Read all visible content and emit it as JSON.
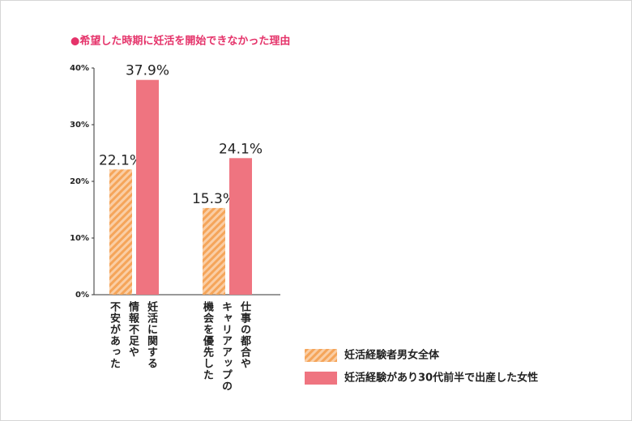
{
  "chart_data": {
    "type": "bar",
    "title": "●希望した時期に妊活を開始できなかった理由",
    "categories": [
      "妊活に関する\n情報不足や\n不安があった",
      "仕事の都合や\nキャリアアップの\n機会を優先した"
    ],
    "series": [
      {
        "name": "妊活経験者男女全体",
        "color": "#f5a55a",
        "pattern": "hatch",
        "values": [
          22.1,
          15.3
        ],
        "value_labels": [
          "22.1%",
          "15.3%"
        ]
      },
      {
        "name": "妊活経験があり30代前半で出産した女性",
        "color": "#ef7480",
        "values": [
          37.9,
          24.1
        ],
        "value_labels": [
          "37.9%",
          "24.1%"
        ]
      }
    ],
    "ylim": [
      0,
      40
    ],
    "yticks": [
      {
        "value": 0,
        "label": "0%"
      },
      {
        "value": 10,
        "label": "10%"
      },
      {
        "value": 20,
        "label": "20%"
      },
      {
        "value": 30,
        "label": "30%"
      },
      {
        "value": 40,
        "label": "40%"
      }
    ],
    "grid": false
  }
}
